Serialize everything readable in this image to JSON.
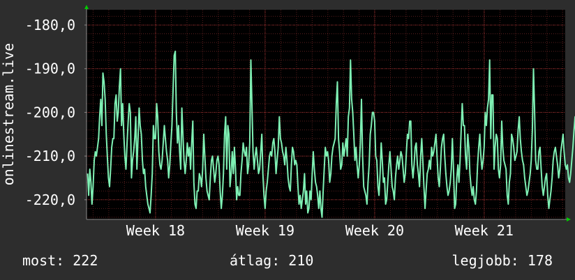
{
  "chart_data": {
    "type": "line",
    "ylabel": "onlinestream.live",
    "y_ticks": [
      "-180,0",
      "-190,0",
      "-200,0",
      "-210,0",
      "-220,0"
    ],
    "y_tick_values": [
      -180,
      -190,
      -200,
      -210,
      -220
    ],
    "ylim": [
      -224.5,
      -176.5
    ],
    "x_ticks": [
      "Week 18",
      "Week 19",
      "Week 20",
      "Week 21"
    ],
    "x_tick_positions": [
      18,
      19,
      20,
      21
    ],
    "xlim": [
      17.37,
      21.74
    ],
    "grid": true,
    "colors": {
      "background": "#2d2d2d",
      "plot": "#000000",
      "line": "#7ff0b4",
      "grid": "#5a1e1e",
      "arrow": "#00cc00",
      "text": "#ffffff"
    },
    "series": [
      {
        "x_start": 17.38,
        "x_step": 0.01,
        "values": [
          -214,
          -219,
          -213,
          -216,
          -221,
          -217,
          -211,
          -209,
          -210,
          -208,
          -206,
          -201,
          -197,
          -203,
          -191,
          -193,
          -197,
          -205,
          -210,
          -215,
          -217,
          -213,
          -208,
          -206,
          -206,
          -198,
          -196,
          -202,
          -200,
          -194,
          -190,
          -203,
          -198,
          -205,
          -210,
          -213,
          -207,
          -202,
          -198,
          -200,
          -215,
          -211,
          -209,
          -206,
          -201,
          -213,
          -206,
          -199,
          -203,
          -205,
          -211,
          -214,
          -213,
          -217,
          -219,
          -221,
          -222,
          -223,
          -219,
          -214,
          -203,
          -206,
          -206,
          -198,
          -201,
          -209,
          -212,
          -213,
          -211,
          -207,
          -203,
          -206,
          -209,
          -211,
          -215,
          -212,
          -207,
          -203,
          -195,
          -187,
          -186,
          -200,
          -207,
          -203,
          -209,
          -213,
          -199,
          -205,
          -211,
          -214,
          -211,
          -207,
          -210,
          -208,
          -213,
          -207,
          -202,
          -216,
          -221,
          -222,
          -218,
          -218,
          -214,
          -215,
          -217,
          -213,
          -205,
          -210,
          -215,
          -218,
          -219,
          -220,
          -215,
          -211,
          -210,
          -213,
          -216,
          -214,
          -211,
          -210,
          -212,
          -218,
          -222,
          -219,
          -214,
          -205,
          -201,
          -213,
          -203,
          -205,
          -217,
          -214,
          -209,
          -214,
          -208,
          -213,
          -220,
          -217,
          -219,
          -219,
          -214,
          -211,
          -207,
          -209,
          -210,
          -208,
          -214,
          -212,
          -207,
          -188,
          -198,
          -209,
          -213,
          -210,
          -208,
          -211,
          -214,
          -213,
          -209,
          -205,
          -214,
          -219,
          -222,
          -218,
          -216,
          -213,
          -210,
          -209,
          -210,
          -207,
          -206,
          -209,
          -214,
          -211,
          -208,
          -201,
          -206,
          -207,
          -209,
          -210,
          -212,
          -208,
          -211,
          -215,
          -217,
          -218,
          -212,
          -208,
          -209,
          -212,
          -211,
          -212,
          -217,
          -221,
          -219,
          -222,
          -220,
          -218,
          -214,
          -221,
          -218,
          -223,
          -222,
          -218,
          -220,
          -214,
          -209,
          -213,
          -216,
          -217,
          -219,
          -222,
          -218,
          -222,
          -224,
          -218,
          -213,
          -208,
          -210,
          -209,
          -211,
          -216,
          -214,
          -210,
          -208,
          -207,
          -206,
          -198,
          -193,
          -206,
          -209,
          -213,
          -212,
          -207,
          -210,
          -208,
          -206,
          -210,
          -201,
          -199,
          -188,
          -197,
          -200,
          -205,
          -211,
          -208,
          -212,
          -215,
          -212,
          -207,
          -197,
          -210,
          -217,
          -218,
          -219,
          -221,
          -216,
          -212,
          -205,
          -203,
          -200,
          -200,
          -202,
          -210,
          -211,
          -217,
          -219,
          -214,
          -207,
          -211,
          -216,
          -215,
          -221,
          -220,
          -216,
          -212,
          -209,
          -213,
          -217,
          -218,
          -220,
          -215,
          -212,
          -210,
          -213,
          -211,
          -209,
          -210,
          -213,
          -216,
          -214,
          -209,
          -205,
          -206,
          -202,
          -202,
          -212,
          -215,
          -212,
          -208,
          -207,
          -212,
          -214,
          -217,
          -210,
          -206,
          -211,
          -217,
          -222,
          -218,
          -214,
          -213,
          -211,
          -213,
          -208,
          -210,
          -209,
          -207,
          -205,
          -210,
          -215,
          -217,
          -213,
          -208,
          -206,
          -205,
          -210,
          -214,
          -217,
          -219,
          -218,
          -216,
          -213,
          -206,
          -213,
          -222,
          -221,
          -215,
          -212,
          -216,
          -211,
          -204,
          -198,
          -203,
          -203,
          -210,
          -213,
          -205,
          -208,
          -214,
          -217,
          -219,
          -217,
          -220,
          -221,
          -218,
          -212,
          -208,
          -205,
          -210,
          -213,
          -211,
          -208,
          -200,
          -203,
          -199,
          -197,
          -188,
          -206,
          -196,
          -196,
          -213,
          -208,
          -205,
          -206,
          -213,
          -215,
          -212,
          -202,
          -208,
          -211,
          -212,
          -213,
          -219,
          -221,
          -216,
          -214,
          -205,
          -206,
          -208,
          -211,
          -210,
          -209,
          -204,
          -201,
          -206,
          -209,
          -211,
          -212,
          -215,
          -217,
          -219,
          -218,
          -216,
          -214,
          -211,
          -204,
          -190,
          -199,
          -211,
          -213,
          -213,
          -209,
          -208,
          -213,
          -217,
          -219,
          -217,
          -215,
          -214,
          -219,
          -222,
          -220,
          -218,
          -215,
          -211,
          -209,
          -208,
          -210,
          -212,
          -215,
          -213,
          -209,
          -207,
          -205,
          -209,
          -212,
          -213,
          -212,
          -215,
          -216,
          -214,
          -211,
          -208,
          -204,
          -201,
          -207,
          -203,
          -206,
          -204,
          -210,
          -213,
          -211,
          -217,
          -220,
          -221,
          -217,
          -214,
          -216,
          -212,
          -206,
          -199,
          -196,
          -204,
          -201,
          -198,
          -205,
          -210,
          -208,
          -211,
          -207,
          -201,
          -203,
          -205,
          -210,
          -213,
          -212,
          -215,
          -218,
          -222,
          -219,
          -216,
          -216,
          -210,
          -209,
          -213,
          -207,
          -203,
          -211,
          -199,
          -197,
          -211,
          -218,
          -213,
          -216,
          -221,
          -218,
          -211,
          -207,
          -209,
          -215,
          -214,
          -211,
          -208,
          -211,
          -214,
          -217,
          -219,
          -220,
          -217,
          -214,
          -212,
          -210,
          -213,
          -214,
          -211,
          -207,
          -200,
          -205,
          -194,
          -205,
          -202,
          -208,
          -213,
          -210,
          -205,
          -200,
          -193,
          -188,
          -185,
          -187,
          -192,
          -199,
          -192,
          -187,
          -194,
          -203,
          -202,
          -199,
          -207,
          -199,
          -190,
          -177,
          -177,
          -185,
          -188,
          -191,
          -204,
          -201,
          -198,
          -204,
          -211,
          -208,
          -207,
          -199,
          -197,
          -203,
          -200,
          -189,
          -190,
          -197,
          -185,
          -182,
          -186,
          -204,
          -209,
          -203,
          -208,
          -205,
          -213,
          -210,
          -204,
          -207,
          -208,
          -209,
          -203,
          -203,
          -204,
          -199,
          -200,
          -205,
          -212,
          -209,
          -205,
          -210,
          -216,
          -216,
          -203,
          -201,
          -205,
          -212,
          -213,
          -211,
          -209,
          -206,
          -212,
          -209,
          -204,
          -200,
          -205,
          -211,
          -210,
          -207,
          -203,
          -207,
          -211,
          -213,
          -217,
          -222,
          -216,
          -214,
          -211,
          -206,
          -203,
          -208,
          -213,
          -214,
          -212,
          -216,
          -219,
          -221,
          -218,
          -214,
          -210,
          -208,
          -206,
          -208,
          -207,
          -209,
          -212,
          -209,
          -207,
          -211,
          -214,
          -215,
          -210,
          -206,
          -211,
          -212,
          -217,
          -219,
          -221,
          -218,
          -214,
          -211,
          -213,
          -211,
          -215,
          -217,
          -219,
          -222,
          -218,
          -214,
          -211,
          -208,
          -204,
          -197,
          -208,
          -206,
          -213,
          -215,
          -212,
          -208,
          -209,
          -212,
          -217,
          -220,
          -219,
          -222,
          -218,
          -214,
          -211,
          -208,
          -205,
          -203,
          -209,
          -207,
          -205,
          -209,
          -214,
          -216,
          -218,
          -215,
          -212,
          -209,
          -195,
          -206,
          -210,
          -203,
          -208,
          -204,
          -213,
          -216,
          -214,
          -212,
          -208,
          -213,
          -221,
          -222
        ]
      }
    ]
  },
  "stats": {
    "current": "most: 222",
    "average": "átlag: 210",
    "max": "legjobb: 178"
  }
}
